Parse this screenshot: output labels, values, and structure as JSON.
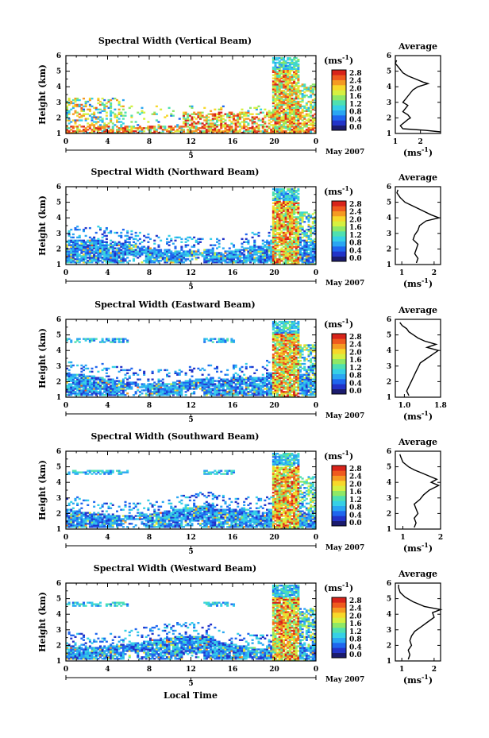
{
  "figure": {
    "date_label": "May 2007",
    "x_axis_label": "Local Time",
    "unit_label": "(ms",
    "unit_sup": "-1",
    "unit_close": ")",
    "y_axis_label": "Height (km)",
    "average_title": "Average"
  },
  "colors": {
    "colormap": [
      "#1b1b6e",
      "#2233c8",
      "#1f66ee",
      "#2aa6f2",
      "#36d0e6",
      "#4fe0b0",
      "#8fe866",
      "#d6f040",
      "#f7d82a",
      "#f59a22",
      "#ef5a1e",
      "#d8231a"
    ],
    "colormap_no_data": "#ffffff"
  },
  "chart_data": [
    {
      "type": "heatmap",
      "title": "Spectral Width (Vertical Beam)",
      "xlim": [
        0,
        24
      ],
      "ylim": [
        1,
        6
      ],
      "xticks": [
        "0",
        "4",
        "8",
        "12",
        "16",
        "20",
        "0"
      ],
      "xtick_values": [
        0,
        4,
        8,
        12,
        16,
        20,
        24
      ],
      "secondary_tick_label": "5",
      "yticks": [
        "1",
        "2",
        "3",
        "4",
        "5",
        "6"
      ],
      "colorbar_labels": [
        "2.8",
        "2.4",
        "2.0",
        "1.6",
        "1.2",
        "0.8",
        "0.4",
        "0.0"
      ],
      "colorbar_range": [
        0.0,
        2.8
      ],
      "average": {
        "xlim": [
          1.0,
          2.8
        ],
        "xticks": [
          "1",
          "2"
        ],
        "xtick_values": [
          1,
          2
        ],
        "profile": [
          [
            1.1,
            2.8
          ],
          [
            1.2,
            2.2
          ],
          [
            1.3,
            1.3
          ],
          [
            1.5,
            1.2
          ],
          [
            1.7,
            1.35
          ],
          [
            1.9,
            1.5
          ],
          [
            2.0,
            1.6
          ],
          [
            2.2,
            1.5
          ],
          [
            2.4,
            1.3
          ],
          [
            2.6,
            1.4
          ],
          [
            2.8,
            1.5
          ],
          [
            3.0,
            1.3
          ],
          [
            3.2,
            1.4
          ],
          [
            3.4,
            1.5
          ],
          [
            3.6,
            1.6
          ],
          [
            3.8,
            1.7
          ],
          [
            4.0,
            1.9
          ],
          [
            4.2,
            2.3
          ],
          [
            4.3,
            2.1
          ],
          [
            4.5,
            1.8
          ],
          [
            4.7,
            1.5
          ],
          [
            4.9,
            1.3
          ],
          [
            5.1,
            1.2
          ],
          [
            5.3,
            1.1
          ],
          [
            5.5,
            1.0
          ],
          [
            5.7,
            1.05
          ]
        ]
      }
    },
    {
      "type": "heatmap",
      "title": "Spectral Width (Northward Beam)",
      "xlim": [
        0,
        24
      ],
      "ylim": [
        1,
        6
      ],
      "xticks": [
        "0",
        "4",
        "8",
        "12",
        "16",
        "20",
        "0"
      ],
      "xtick_values": [
        0,
        4,
        8,
        12,
        16,
        20,
        24
      ],
      "secondary_tick_label": "5",
      "yticks": [
        "1",
        "2",
        "3",
        "4",
        "5",
        "6"
      ],
      "colorbar_labels": [
        "2.8",
        "2.4",
        "2.0",
        "1.6",
        "1.2",
        "0.8",
        "0.4",
        "0.0"
      ],
      "colorbar_range": [
        0.0,
        2.8
      ],
      "average": {
        "xlim": [
          0.8,
          2.2
        ],
        "xticks": [
          "1",
          "2"
        ],
        "xtick_values": [
          1,
          2
        ],
        "profile": [
          [
            1.1,
            1.45
          ],
          [
            1.4,
            1.5
          ],
          [
            1.7,
            1.4
          ],
          [
            2.0,
            1.45
          ],
          [
            2.3,
            1.5
          ],
          [
            2.6,
            1.35
          ],
          [
            2.9,
            1.4
          ],
          [
            3.2,
            1.5
          ],
          [
            3.5,
            1.55
          ],
          [
            3.8,
            1.75
          ],
          [
            4.0,
            2.15
          ],
          [
            4.2,
            1.9
          ],
          [
            4.5,
            1.6
          ],
          [
            4.8,
            1.3
          ],
          [
            5.0,
            1.1
          ],
          [
            5.3,
            0.95
          ],
          [
            5.6,
            0.85
          ],
          [
            5.8,
            0.88
          ]
        ]
      }
    },
    {
      "type": "heatmap",
      "title": "Spectral Width (Eastward Beam)",
      "xlim": [
        0,
        24
      ],
      "ylim": [
        1,
        6
      ],
      "xticks": [
        "0",
        "4",
        "8",
        "12",
        "16",
        "20",
        "0"
      ],
      "xtick_values": [
        0,
        4,
        8,
        12,
        16,
        20,
        24
      ],
      "secondary_tick_label": "5",
      "yticks": [
        "1",
        "2",
        "3",
        "4",
        "5",
        "6"
      ],
      "colorbar_labels": [
        "2.8",
        "2.4",
        "2.0",
        "1.6",
        "1.2",
        "0.8",
        "0.4",
        "0.0"
      ],
      "colorbar_range": [
        0.0,
        2.8
      ],
      "average": {
        "xlim": [
          0.8,
          1.8
        ],
        "xticks": [
          "1.0",
          "1.8"
        ],
        "xtick_values": [
          1.0,
          1.8
        ],
        "profile": [
          [
            1.1,
            1.1
          ],
          [
            1.4,
            1.05
          ],
          [
            1.7,
            1.1
          ],
          [
            2.0,
            1.15
          ],
          [
            2.3,
            1.2
          ],
          [
            2.6,
            1.25
          ],
          [
            2.9,
            1.3
          ],
          [
            3.2,
            1.35
          ],
          [
            3.5,
            1.5
          ],
          [
            3.8,
            1.65
          ],
          [
            4.0,
            1.75
          ],
          [
            4.2,
            1.5
          ],
          [
            4.4,
            1.7
          ],
          [
            4.6,
            1.45
          ],
          [
            4.8,
            1.3
          ],
          [
            5.0,
            1.2
          ],
          [
            5.2,
            1.1
          ],
          [
            5.4,
            1.05
          ],
          [
            5.6,
            0.95
          ],
          [
            5.8,
            0.9
          ]
        ]
      }
    },
    {
      "type": "heatmap",
      "title": "Spectral Width (Southward Beam)",
      "xlim": [
        0,
        24
      ],
      "ylim": [
        1,
        6
      ],
      "xticks": [
        "0",
        "4",
        "8",
        "12",
        "16",
        "20",
        "0"
      ],
      "xtick_values": [
        0,
        4,
        8,
        12,
        16,
        20,
        24
      ],
      "secondary_tick_label": "5",
      "yticks": [
        "1",
        "2",
        "3",
        "4",
        "5",
        "6"
      ],
      "colorbar_labels": [
        "2.8",
        "2.4",
        "2.0",
        "1.6",
        "1.2",
        "0.8",
        "0.4",
        "0.0"
      ],
      "colorbar_range": [
        0.0,
        2.8
      ],
      "average": {
        "xlim": [
          0.8,
          2.0
        ],
        "xticks": [
          "1",
          "2"
        ],
        "xtick_values": [
          1,
          2
        ],
        "profile": [
          [
            1.1,
            1.3
          ],
          [
            1.4,
            1.35
          ],
          [
            1.7,
            1.3
          ],
          [
            2.0,
            1.4
          ],
          [
            2.3,
            1.35
          ],
          [
            2.6,
            1.3
          ],
          [
            2.9,
            1.45
          ],
          [
            3.2,
            1.55
          ],
          [
            3.5,
            1.7
          ],
          [
            3.8,
            1.95
          ],
          [
            4.0,
            1.75
          ],
          [
            4.2,
            1.9
          ],
          [
            4.4,
            1.7
          ],
          [
            4.6,
            1.5
          ],
          [
            4.8,
            1.3
          ],
          [
            5.0,
            1.15
          ],
          [
            5.3,
            1.0
          ],
          [
            5.6,
            0.95
          ],
          [
            5.8,
            0.92
          ]
        ]
      }
    },
    {
      "type": "heatmap",
      "title": "Spectral Width (Westward Beam)",
      "xlim": [
        0,
        24
      ],
      "ylim": [
        1,
        6
      ],
      "xticks": [
        "0",
        "4",
        "8",
        "12",
        "16",
        "20",
        "0"
      ],
      "xtick_values": [
        0,
        4,
        8,
        12,
        16,
        20,
        24
      ],
      "secondary_tick_label": "5",
      "yticks": [
        "1",
        "2",
        "3",
        "4",
        "5",
        "6"
      ],
      "colorbar_labels": [
        "2.8",
        "2.4",
        "2.0",
        "1.6",
        "1.2",
        "0.8",
        "0.4",
        "0.0"
      ],
      "colorbar_range": [
        0.0,
        2.8
      ],
      "average": {
        "xlim": [
          0.8,
          2.2
        ],
        "xticks": [
          "1",
          "2"
        ],
        "xtick_values": [
          1,
          2
        ],
        "profile": [
          [
            1.1,
            1.2
          ],
          [
            1.4,
            1.25
          ],
          [
            1.7,
            1.2
          ],
          [
            2.0,
            1.3
          ],
          [
            2.3,
            1.25
          ],
          [
            2.6,
            1.3
          ],
          [
            2.9,
            1.4
          ],
          [
            3.2,
            1.6
          ],
          [
            3.5,
            1.8
          ],
          [
            3.8,
            2.0
          ],
          [
            4.1,
            1.95
          ],
          [
            4.3,
            2.2
          ],
          [
            4.5,
            1.7
          ],
          [
            4.8,
            1.35
          ],
          [
            5.1,
            1.1
          ],
          [
            5.4,
            0.95
          ],
          [
            5.7,
            0.9
          ],
          [
            5.9,
            0.9
          ]
        ]
      }
    }
  ]
}
